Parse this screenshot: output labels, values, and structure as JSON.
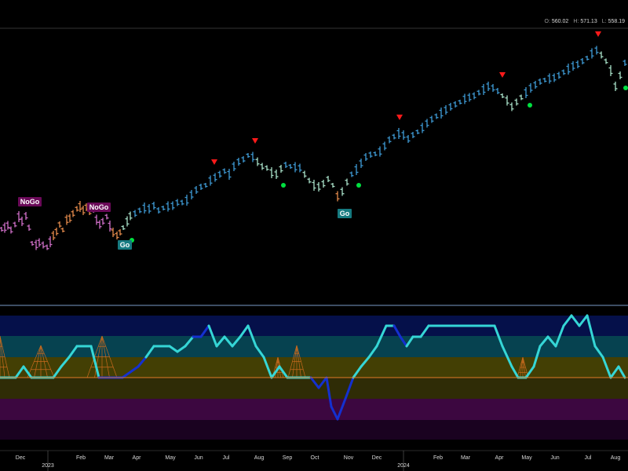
{
  "ohlc": {
    "o_label": "O:",
    "o_value": "560.02",
    "h_label": "H:",
    "h_value": "571.13",
    "l_label": "L:",
    "l_value": "558.19"
  },
  "colors": {
    "background": "#000000",
    "strong_go": "#3e9ad4",
    "weak_go": "#a8e0c8",
    "weak_nogo": "#e48a4c",
    "strong_nogo": "#d070c8",
    "go_dot": "#00e040",
    "top_arrow": "#ff1a1a",
    "go_label_bg": "#167a80",
    "nogo_label_bg": "#6a0a58",
    "oscillator_go": "#35d6d6",
    "oscillator_nogo": "#1430d0",
    "zero_line": "#e07a28",
    "divider": "#7a9cc8"
  },
  "chart_data": {
    "type": "line",
    "x_ticks": [
      "Dec",
      "2023",
      "Feb",
      "Mar",
      "Apr",
      "May",
      "Jun",
      "Jul",
      "Aug",
      "Sep",
      "Oct",
      "Nov",
      "Dec",
      "2024",
      "Feb",
      "Mar",
      "Apr",
      "May",
      "Jun",
      "Jul",
      "Aug"
    ],
    "price": [
      {
        "x": 2,
        "y": 292,
        "c": "snogo"
      },
      {
        "x": 6,
        "y": 290,
        "c": "snogo"
      },
      {
        "x": 10,
        "y": 287,
        "c": "snogo"
      },
      {
        "x": 14,
        "y": 293,
        "c": "snogo"
      },
      {
        "x": 19,
        "y": 286,
        "c": "snogo"
      },
      {
        "x": 24,
        "y": 276,
        "c": "snogo"
      },
      {
        "x": 28,
        "y": 282,
        "c": "snogo"
      },
      {
        "x": 33,
        "y": 275,
        "c": "snogo"
      },
      {
        "x": 37,
        "y": 290,
        "c": "snogo"
      },
      {
        "x": 41,
        "y": 310,
        "c": "snogo"
      },
      {
        "x": 46,
        "y": 312,
        "c": "snogo"
      },
      {
        "x": 50,
        "y": 309,
        "c": "snogo"
      },
      {
        "x": 55,
        "y": 312,
        "c": "snogo"
      },
      {
        "x": 60,
        "y": 315,
        "c": "snogo"
      },
      {
        "x": 64,
        "y": 308,
        "c": "snogo"
      },
      {
        "x": 68,
        "y": 300,
        "c": "wnogo"
      },
      {
        "x": 72,
        "y": 295,
        "c": "wnogo"
      },
      {
        "x": 76,
        "y": 286,
        "c": "wnogo"
      },
      {
        "x": 80,
        "y": 293,
        "c": "wnogo"
      },
      {
        "x": 85,
        "y": 280,
        "c": "wnogo"
      },
      {
        "x": 89,
        "y": 278,
        "c": "wnogo"
      },
      {
        "x": 93,
        "y": 272,
        "c": "wnogo"
      },
      {
        "x": 98,
        "y": 266,
        "c": "wnogo"
      },
      {
        "x": 102,
        "y": 263,
        "c": "wnogo"
      },
      {
        "x": 106,
        "y": 268,
        "c": "wnogo"
      },
      {
        "x": 110,
        "y": 264,
        "c": "wnogo"
      },
      {
        "x": 114,
        "y": 270,
        "c": "wnogo"
      },
      {
        "x": 119,
        "y": 268,
        "c": "snogo"
      },
      {
        "x": 123,
        "y": 280,
        "c": "snogo"
      },
      {
        "x": 127,
        "y": 286,
        "c": "snogo"
      },
      {
        "x": 131,
        "y": 282,
        "c": "snogo"
      },
      {
        "x": 136,
        "y": 276,
        "c": "snogo"
      },
      {
        "x": 140,
        "y": 288,
        "c": "snogo"
      },
      {
        "x": 144,
        "y": 296,
        "c": "wnogo"
      },
      {
        "x": 149,
        "y": 300,
        "c": "wnogo"
      },
      {
        "x": 153,
        "y": 296,
        "c": "wnogo"
      },
      {
        "x": 157,
        "y": 290,
        "c": "wgo"
      },
      {
        "x": 162,
        "y": 282,
        "c": "wgo"
      },
      {
        "x": 166,
        "y": 275,
        "c": "wgo"
      },
      {
        "x": 172,
        "y": 272,
        "c": "sgo"
      },
      {
        "x": 178,
        "y": 268,
        "c": "sgo"
      },
      {
        "x": 184,
        "y": 265,
        "c": "sgo"
      },
      {
        "x": 190,
        "y": 266,
        "c": "sgo"
      },
      {
        "x": 196,
        "y": 262,
        "c": "sgo"
      },
      {
        "x": 202,
        "y": 268,
        "c": "sgo"
      },
      {
        "x": 208,
        "y": 265,
        "c": "sgo"
      },
      {
        "x": 214,
        "y": 263,
        "c": "sgo"
      },
      {
        "x": 220,
        "y": 262,
        "c": "sgo"
      },
      {
        "x": 226,
        "y": 258,
        "c": "sgo"
      },
      {
        "x": 232,
        "y": 258,
        "c": "sgo"
      },
      {
        "x": 238,
        "y": 255,
        "c": "sgo"
      },
      {
        "x": 244,
        "y": 248,
        "c": "sgo"
      },
      {
        "x": 250,
        "y": 242,
        "c": "sgo"
      },
      {
        "x": 256,
        "y": 238,
        "c": "sgo"
      },
      {
        "x": 262,
        "y": 236,
        "c": "sgo"
      },
      {
        "x": 268,
        "y": 230,
        "c": "sgo"
      },
      {
        "x": 274,
        "y": 226,
        "c": "sgo"
      },
      {
        "x": 280,
        "y": 222,
        "c": "sgo"
      },
      {
        "x": 286,
        "y": 218,
        "c": "sgo"
      },
      {
        "x": 292,
        "y": 222,
        "c": "sgo"
      },
      {
        "x": 298,
        "y": 212,
        "c": "sgo"
      },
      {
        "x": 304,
        "y": 206,
        "c": "sgo"
      },
      {
        "x": 310,
        "y": 203,
        "c": "sgo"
      },
      {
        "x": 316,
        "y": 198,
        "c": "sgo"
      },
      {
        "x": 322,
        "y": 200,
        "c": "sgo"
      },
      {
        "x": 328,
        "y": 206,
        "c": "wgo"
      },
      {
        "x": 334,
        "y": 212,
        "c": "wgo"
      },
      {
        "x": 340,
        "y": 214,
        "c": "wgo"
      },
      {
        "x": 346,
        "y": 220,
        "c": "wgo"
      },
      {
        "x": 352,
        "y": 222,
        "c": "wgo"
      },
      {
        "x": 358,
        "y": 215,
        "c": "wgo"
      },
      {
        "x": 364,
        "y": 210,
        "c": "sgo"
      },
      {
        "x": 370,
        "y": 212,
        "c": "sgo"
      },
      {
        "x": 376,
        "y": 213,
        "c": "sgo"
      },
      {
        "x": 382,
        "y": 214,
        "c": "sgo"
      },
      {
        "x": 388,
        "y": 222,
        "c": "wgo"
      },
      {
        "x": 394,
        "y": 230,
        "c": "wgo"
      },
      {
        "x": 400,
        "y": 236,
        "c": "wgo"
      },
      {
        "x": 406,
        "y": 238,
        "c": "wgo"
      },
      {
        "x": 412,
        "y": 234,
        "c": "wgo"
      },
      {
        "x": 418,
        "y": 228,
        "c": "wgo"
      },
      {
        "x": 424,
        "y": 236,
        "c": "wgo"
      },
      {
        "x": 430,
        "y": 250,
        "c": "wnogo"
      },
      {
        "x": 436,
        "y": 244,
        "c": "wgo"
      },
      {
        "x": 442,
        "y": 232,
        "c": "wgo"
      },
      {
        "x": 448,
        "y": 222,
        "c": "sgo"
      },
      {
        "x": 454,
        "y": 216,
        "c": "sgo"
      },
      {
        "x": 460,
        "y": 208,
        "c": "sgo"
      },
      {
        "x": 466,
        "y": 200,
        "c": "sgo"
      },
      {
        "x": 472,
        "y": 197,
        "c": "sgo"
      },
      {
        "x": 478,
        "y": 196,
        "c": "sgo"
      },
      {
        "x": 484,
        "y": 193,
        "c": "sgo"
      },
      {
        "x": 490,
        "y": 186,
        "c": "sgo"
      },
      {
        "x": 496,
        "y": 178,
        "c": "sgo"
      },
      {
        "x": 502,
        "y": 174,
        "c": "sgo"
      },
      {
        "x": 508,
        "y": 170,
        "c": "sgo"
      },
      {
        "x": 514,
        "y": 172,
        "c": "sgo"
      },
      {
        "x": 520,
        "y": 177,
        "c": "sgo"
      },
      {
        "x": 526,
        "y": 172,
        "c": "sgo"
      },
      {
        "x": 532,
        "y": 168,
        "c": "sgo"
      },
      {
        "x": 538,
        "y": 163,
        "c": "sgo"
      },
      {
        "x": 544,
        "y": 157,
        "c": "sgo"
      },
      {
        "x": 550,
        "y": 152,
        "c": "sgo"
      },
      {
        "x": 556,
        "y": 148,
        "c": "sgo"
      },
      {
        "x": 562,
        "y": 144,
        "c": "sgo"
      },
      {
        "x": 568,
        "y": 140,
        "c": "sgo"
      },
      {
        "x": 574,
        "y": 136,
        "c": "sgo"
      },
      {
        "x": 580,
        "y": 133,
        "c": "sgo"
      },
      {
        "x": 586,
        "y": 130,
        "c": "sgo"
      },
      {
        "x": 592,
        "y": 126,
        "c": "sgo"
      },
      {
        "x": 598,
        "y": 124,
        "c": "sgo"
      },
      {
        "x": 604,
        "y": 122,
        "c": "sgo"
      },
      {
        "x": 610,
        "y": 118,
        "c": "sgo"
      },
      {
        "x": 616,
        "y": 114,
        "c": "sgo"
      },
      {
        "x": 622,
        "y": 110,
        "c": "sgo"
      },
      {
        "x": 628,
        "y": 112,
        "c": "sgo"
      },
      {
        "x": 634,
        "y": 116,
        "c": "sgo"
      },
      {
        "x": 640,
        "y": 122,
        "c": "wgo"
      },
      {
        "x": 646,
        "y": 128,
        "c": "wgo"
      },
      {
        "x": 652,
        "y": 136,
        "c": "wgo"
      },
      {
        "x": 658,
        "y": 130,
        "c": "wgo"
      },
      {
        "x": 664,
        "y": 124,
        "c": "wgo"
      },
      {
        "x": 670,
        "y": 118,
        "c": "sgo"
      },
      {
        "x": 676,
        "y": 112,
        "c": "sgo"
      },
      {
        "x": 682,
        "y": 108,
        "c": "sgo"
      },
      {
        "x": 688,
        "y": 104,
        "c": "sgo"
      },
      {
        "x": 694,
        "y": 102,
        "c": "sgo"
      },
      {
        "x": 700,
        "y": 100,
        "c": "sgo"
      },
      {
        "x": 706,
        "y": 99,
        "c": "sgo"
      },
      {
        "x": 712,
        "y": 96,
        "c": "sgo"
      },
      {
        "x": 718,
        "y": 92,
        "c": "sgo"
      },
      {
        "x": 724,
        "y": 88,
        "c": "sgo"
      },
      {
        "x": 730,
        "y": 84,
        "c": "sgo"
      },
      {
        "x": 736,
        "y": 82,
        "c": "sgo"
      },
      {
        "x": 742,
        "y": 78,
        "c": "sgo"
      },
      {
        "x": 748,
        "y": 74,
        "c": "sgo"
      },
      {
        "x": 754,
        "y": 68,
        "c": "sgo"
      },
      {
        "x": 760,
        "y": 64,
        "c": "sgo"
      },
      {
        "x": 766,
        "y": 70,
        "c": "wgo"
      },
      {
        "x": 772,
        "y": 78,
        "c": "wgo"
      },
      {
        "x": 778,
        "y": 90,
        "c": "wgo"
      },
      {
        "x": 784,
        "y": 110,
        "c": "wgo"
      },
      {
        "x": 790,
        "y": 96,
        "c": "wgo"
      },
      {
        "x": 796,
        "y": 80,
        "c": "sgo"
      }
    ],
    "go_dots": [
      {
        "x": 168,
        "y": 306
      },
      {
        "x": 361,
        "y": 236
      },
      {
        "x": 457,
        "y": 236
      },
      {
        "x": 675,
        "y": 134
      },
      {
        "x": 797,
        "y": 112
      }
    ],
    "top_arrows": [
      {
        "x": 273,
        "y": 207
      },
      {
        "x": 325,
        "y": 180
      },
      {
        "x": 509,
        "y": 150
      },
      {
        "x": 640,
        "y": 96
      },
      {
        "x": 762,
        "y": 44
      }
    ],
    "labels": [
      {
        "text": "NoGo",
        "x": 38,
        "y": 257,
        "kind": "nogo"
      },
      {
        "text": "NoGo",
        "x": 126,
        "y": 264,
        "kind": "nogo"
      },
      {
        "text": "Go",
        "x": 159,
        "y": 312,
        "kind": "go"
      },
      {
        "text": "Go",
        "x": 439,
        "y": 272,
        "kind": "go"
      }
    ],
    "oscillator": [
      {
        "x": 0,
        "y": 481,
        "c": "go"
      },
      {
        "x": 20,
        "y": 481,
        "c": "go"
      },
      {
        "x": 30,
        "y": 467,
        "c": "go"
      },
      {
        "x": 40,
        "y": 481,
        "c": "go"
      },
      {
        "x": 68,
        "y": 481,
        "c": "go"
      },
      {
        "x": 78,
        "y": 467,
        "c": "go"
      },
      {
        "x": 88,
        "y": 455,
        "c": "go"
      },
      {
        "x": 98,
        "y": 441,
        "c": "go"
      },
      {
        "x": 116,
        "y": 441,
        "c": "go"
      },
      {
        "x": 126,
        "y": 481,
        "c": "go"
      },
      {
        "x": 156,
        "y": 481,
        "c": "nogo"
      },
      {
        "x": 166,
        "y": 474,
        "c": "nogo"
      },
      {
        "x": 176,
        "y": 467,
        "c": "nogo"
      },
      {
        "x": 186,
        "y": 455,
        "c": "nogo"
      },
      {
        "x": 196,
        "y": 441,
        "c": "go"
      },
      {
        "x": 216,
        "y": 441,
        "c": "go"
      },
      {
        "x": 226,
        "y": 448,
        "c": "go"
      },
      {
        "x": 236,
        "y": 441,
        "c": "go"
      },
      {
        "x": 246,
        "y": 429,
        "c": "go"
      },
      {
        "x": 256,
        "y": 429,
        "c": "nogo"
      },
      {
        "x": 266,
        "y": 415,
        "c": "nogo"
      },
      {
        "x": 276,
        "y": 441,
        "c": "go"
      },
      {
        "x": 286,
        "y": 429,
        "c": "go"
      },
      {
        "x": 296,
        "y": 441,
        "c": "go"
      },
      {
        "x": 306,
        "y": 429,
        "c": "go"
      },
      {
        "x": 316,
        "y": 415,
        "c": "go"
      },
      {
        "x": 326,
        "y": 441,
        "c": "go"
      },
      {
        "x": 336,
        "y": 455,
        "c": "go"
      },
      {
        "x": 346,
        "y": 481,
        "c": "go"
      },
      {
        "x": 356,
        "y": 467,
        "c": "go"
      },
      {
        "x": 366,
        "y": 481,
        "c": "go"
      },
      {
        "x": 396,
        "y": 481,
        "c": "go"
      },
      {
        "x": 406,
        "y": 494,
        "c": "nogo"
      },
      {
        "x": 416,
        "y": 481,
        "c": "nogo"
      },
      {
        "x": 422,
        "y": 518,
        "c": "nogo"
      },
      {
        "x": 430,
        "y": 534,
        "c": "nogo"
      },
      {
        "x": 440,
        "y": 508,
        "c": "nogo"
      },
      {
        "x": 450,
        "y": 481,
        "c": "nogo"
      },
      {
        "x": 460,
        "y": 467,
        "c": "go"
      },
      {
        "x": 470,
        "y": 455,
        "c": "go"
      },
      {
        "x": 480,
        "y": 441,
        "c": "go"
      },
      {
        "x": 492,
        "y": 415,
        "c": "go"
      },
      {
        "x": 502,
        "y": 415,
        "c": "go"
      },
      {
        "x": 510,
        "y": 429,
        "c": "nogo"
      },
      {
        "x": 518,
        "y": 441,
        "c": "nogo"
      },
      {
        "x": 526,
        "y": 429,
        "c": "go"
      },
      {
        "x": 536,
        "y": 429,
        "c": "go"
      },
      {
        "x": 546,
        "y": 415,
        "c": "go"
      },
      {
        "x": 630,
        "y": 415,
        "c": "go"
      },
      {
        "x": 640,
        "y": 441,
        "c": "go"
      },
      {
        "x": 652,
        "y": 467,
        "c": "go"
      },
      {
        "x": 660,
        "y": 481,
        "c": "go"
      },
      {
        "x": 670,
        "y": 481,
        "c": "go"
      },
      {
        "x": 680,
        "y": 467,
        "c": "go"
      },
      {
        "x": 688,
        "y": 441,
        "c": "go"
      },
      {
        "x": 698,
        "y": 429,
        "c": "go"
      },
      {
        "x": 708,
        "y": 441,
        "c": "go"
      },
      {
        "x": 718,
        "y": 415,
        "c": "go"
      },
      {
        "x": 728,
        "y": 402,
        "c": "go"
      },
      {
        "x": 738,
        "y": 415,
        "c": "go"
      },
      {
        "x": 748,
        "y": 402,
        "c": "go"
      },
      {
        "x": 758,
        "y": 441,
        "c": "go"
      },
      {
        "x": 768,
        "y": 455,
        "c": "go"
      },
      {
        "x": 778,
        "y": 481,
        "c": "go"
      },
      {
        "x": 788,
        "y": 467,
        "c": "go"
      },
      {
        "x": 796,
        "y": 481,
        "c": "go"
      }
    ],
    "oscillator_bands": [
      {
        "y1": 402,
        "y2": 428,
        "color": "#05104a"
      },
      {
        "y1": 428,
        "y2": 455,
        "color": "#064250"
      },
      {
        "y1": 455,
        "y2": 481,
        "color": "#433f04"
      },
      {
        "y1": 481,
        "y2": 508,
        "color": "#2f2c06"
      },
      {
        "y1": 508,
        "y2": 535,
        "color": "#3c0740"
      },
      {
        "y1": 535,
        "y2": 560,
        "color": "#1a0220"
      }
    ],
    "zero_line_y": 481
  }
}
